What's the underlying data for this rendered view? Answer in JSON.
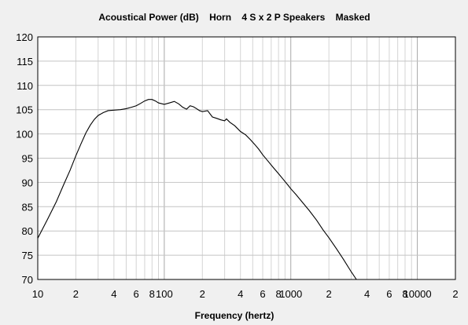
{
  "chart_data": {
    "type": "line",
    "title": "Acoustical Power (dB)    Horn    4 S x 2 P Speakers    Masked",
    "xlabel": "Frequency (hertz)",
    "ylabel": "",
    "x_scale": "log",
    "xlim": [
      10,
      20000
    ],
    "ylim": [
      70,
      120
    ],
    "grid": true,
    "y_ticks": [
      "70",
      "75",
      "80",
      "85",
      "90",
      "95",
      "100",
      "105",
      "110",
      "115",
      "120"
    ],
    "x_ticks": [
      {
        "x": 10,
        "label": "10"
      },
      {
        "x": 20,
        "label": "2"
      },
      {
        "x": 40,
        "label": "4"
      },
      {
        "x": 60,
        "label": "6"
      },
      {
        "x": 80,
        "label": "8"
      },
      {
        "x": 100,
        "label": "100"
      },
      {
        "x": 200,
        "label": "2"
      },
      {
        "x": 400,
        "label": "4"
      },
      {
        "x": 600,
        "label": "6"
      },
      {
        "x": 800,
        "label": "8"
      },
      {
        "x": 1000,
        "label": "1000"
      },
      {
        "x": 2000,
        "label": "2"
      },
      {
        "x": 4000,
        "label": "4"
      },
      {
        "x": 6000,
        "label": "6"
      },
      {
        "x": 8000,
        "label": "8"
      },
      {
        "x": 10000,
        "label": "10000"
      },
      {
        "x": 20000,
        "label": "2"
      }
    ],
    "series": [
      {
        "color": "#000000",
        "points": [
          [
            10,
            78.5
          ],
          [
            12,
            82.5
          ],
          [
            14,
            86.0
          ],
          [
            16,
            89.5
          ],
          [
            18,
            92.5
          ],
          [
            20,
            95.5
          ],
          [
            22,
            98.0
          ],
          [
            24,
            100.2
          ],
          [
            26,
            101.8
          ],
          [
            28,
            103.0
          ],
          [
            30,
            103.8
          ],
          [
            33,
            104.4
          ],
          [
            36,
            104.8
          ],
          [
            40,
            104.9
          ],
          [
            45,
            105.0
          ],
          [
            50,
            105.2
          ],
          [
            55,
            105.5
          ],
          [
            60,
            105.8
          ],
          [
            65,
            106.3
          ],
          [
            70,
            106.8
          ],
          [
            75,
            107.1
          ],
          [
            80,
            107.1
          ],
          [
            85,
            106.8
          ],
          [
            90,
            106.4
          ],
          [
            100,
            106.1
          ],
          [
            110,
            106.4
          ],
          [
            120,
            106.7
          ],
          [
            130,
            106.2
          ],
          [
            140,
            105.5
          ],
          [
            150,
            105.1
          ],
          [
            160,
            105.8
          ],
          [
            170,
            105.6
          ],
          [
            180,
            105.2
          ],
          [
            190,
            104.8
          ],
          [
            200,
            104.6
          ],
          [
            220,
            104.8
          ],
          [
            240,
            103.5
          ],
          [
            260,
            103.2
          ],
          [
            280,
            102.9
          ],
          [
            300,
            102.7
          ],
          [
            310,
            103.1
          ],
          [
            330,
            102.4
          ],
          [
            360,
            101.7
          ],
          [
            400,
            100.5
          ],
          [
            440,
            99.8
          ],
          [
            480,
            98.8
          ],
          [
            520,
            97.8
          ],
          [
            560,
            96.8
          ],
          [
            600,
            95.7
          ],
          [
            660,
            94.4
          ],
          [
            720,
            93.2
          ],
          [
            800,
            91.8
          ],
          [
            880,
            90.5
          ],
          [
            960,
            89.3
          ],
          [
            1000,
            88.7
          ],
          [
            1100,
            87.5
          ],
          [
            1200,
            86.3
          ],
          [
            1400,
            84.2
          ],
          [
            1600,
            82.2
          ],
          [
            1800,
            80.2
          ],
          [
            2000,
            78.6
          ],
          [
            2300,
            76.3
          ],
          [
            2600,
            74.2
          ],
          [
            3000,
            71.6
          ],
          [
            3300,
            70.0
          ]
        ]
      }
    ]
  }
}
